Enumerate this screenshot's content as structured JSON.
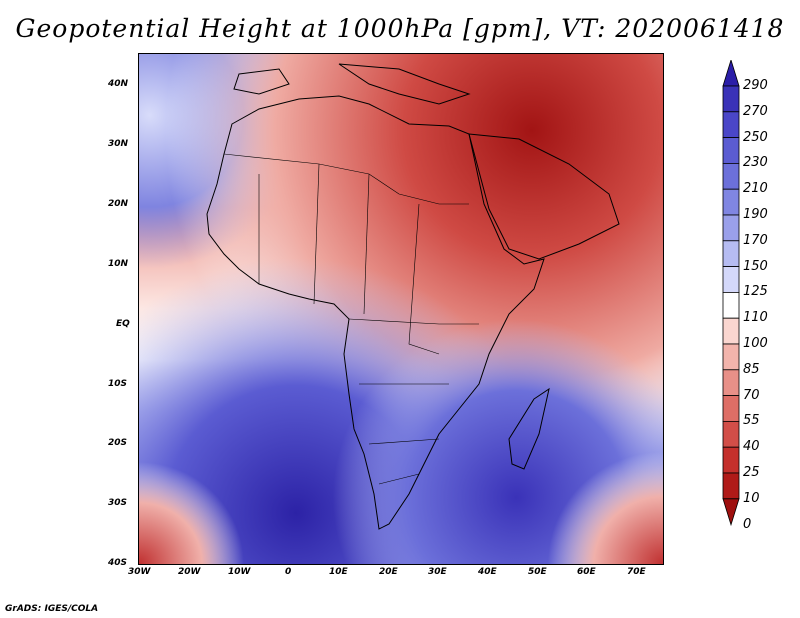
{
  "title": "Geopotential Height at 1000hPa [gpm], VT: 2020061418",
  "credit": "GrADS: IGES/COLA",
  "lat_labels": [
    "40N",
    "30N",
    "20N",
    "10N",
    "EQ",
    "10S",
    "20S",
    "30S",
    "40S"
  ],
  "lon_labels": [
    "30W",
    "20W",
    "10W",
    "0",
    "10E",
    "20E",
    "30E",
    "40E",
    "50E",
    "60E",
    "70E"
  ],
  "colorbar": {
    "labels": [
      "290",
      "270",
      "250",
      "230",
      "210",
      "190",
      "170",
      "150",
      "125",
      "110",
      "100",
      "85",
      "70",
      "55",
      "40",
      "25",
      "10",
      "0"
    ],
    "colors": [
      "#2b1ea8",
      "#3a32b8",
      "#4a46c8",
      "#5b5cd2",
      "#6c70da",
      "#8086e2",
      "#9aa0ea",
      "#b6bcf2",
      "#d4d8fa",
      "#ffffff",
      "#fad6d0",
      "#f2b4ac",
      "#e89088",
      "#de6e66",
      "#d24e48",
      "#c4302c",
      "#b01a18",
      "#9e0f0e"
    ]
  }
}
